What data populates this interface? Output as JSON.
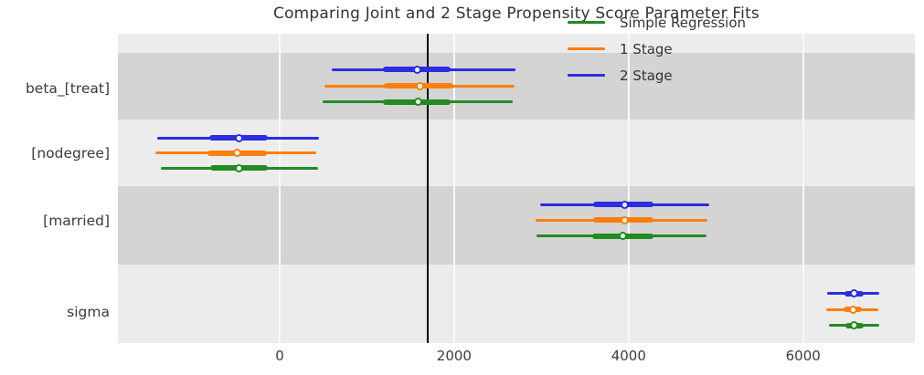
{
  "chart_data": {
    "type": "forest",
    "title": "Comparing Joint and 2 Stage Propensity Score Parameter Fits",
    "xlabel": "",
    "ylabel": "",
    "xlim": [
      -1854,
      7281
    ],
    "x_ticks": [
      0,
      2000,
      4000,
      6000
    ],
    "x_tick_labels": [
      "0",
      "2000",
      "4000",
      "6000"
    ],
    "reference_line_x": 1700,
    "grid": "vertical-white",
    "legend_position": "upper-right-inside",
    "legend": [
      {
        "label": "Simple Regression",
        "color": "#228b22"
      },
      {
        "label": "1 Stage",
        "color": "#ff7f0e"
      },
      {
        "label": "2 Stage",
        "color": "#2d2de1"
      }
    ],
    "colors": {
      "figure_background": "#ffffff",
      "band_light": "#ececec",
      "band_dark": "#d4d4d4",
      "reference_line": "#000000",
      "gridline": "#fafafa",
      "text": "#3a3a3a"
    },
    "parameters": [
      {
        "name": "beta_[treat]",
        "series": [
          {
            "legend": "2 Stage",
            "mean": 1580,
            "hdi_94": [
              600,
              2700
            ],
            "hdi_50": [
              1185,
              1960
            ]
          },
          {
            "legend": "1 Stage",
            "mean": 1610,
            "hdi_94": [
              510,
              2690
            ],
            "hdi_50": [
              1195,
              1990
            ]
          },
          {
            "legend": "Simple Regression",
            "mean": 1585,
            "hdi_94": [
              490,
              2670
            ],
            "hdi_50": [
              1185,
              1960
            ]
          }
        ]
      },
      {
        "name": "[nodegree]",
        "series": [
          {
            "legend": "2 Stage",
            "mean": -470,
            "hdi_94": [
              -1400,
              450
            ],
            "hdi_50": [
              -810,
              -140
            ]
          },
          {
            "legend": "1 Stage",
            "mean": -490,
            "hdi_94": [
              -1420,
              420
            ],
            "hdi_50": [
              -825,
              -150
            ]
          },
          {
            "legend": "Simple Regression",
            "mean": -470,
            "hdi_94": [
              -1360,
              440
            ],
            "hdi_50": [
              -800,
              -135
            ]
          }
        ]
      },
      {
        "name": "[married]",
        "series": [
          {
            "legend": "2 Stage",
            "mean": 3960,
            "hdi_94": [
              2990,
              4920
            ],
            "hdi_50": [
              3590,
              4280
            ]
          },
          {
            "legend": "1 Stage",
            "mean": 3950,
            "hdi_94": [
              2930,
              4900
            ],
            "hdi_50": [
              3590,
              4280
            ]
          },
          {
            "legend": "Simple Regression",
            "mean": 3930,
            "hdi_94": [
              2940,
              4890
            ],
            "hdi_50": [
              3585,
              4285
            ]
          }
        ]
      },
      {
        "name": "sigma",
        "series": [
          {
            "legend": "2 Stage",
            "mean": 6580,
            "hdi_94": [
              6275,
              6870
            ],
            "hdi_50": [
              6475,
              6690
            ]
          },
          {
            "legend": "1 Stage",
            "mean": 6575,
            "hdi_94": [
              6270,
              6860
            ],
            "hdi_50": [
              6465,
              6675
            ]
          },
          {
            "legend": "Simple Regression",
            "mean": 6580,
            "hdi_94": [
              6300,
              6875
            ],
            "hdi_50": [
              6485,
              6695
            ]
          }
        ]
      }
    ]
  }
}
